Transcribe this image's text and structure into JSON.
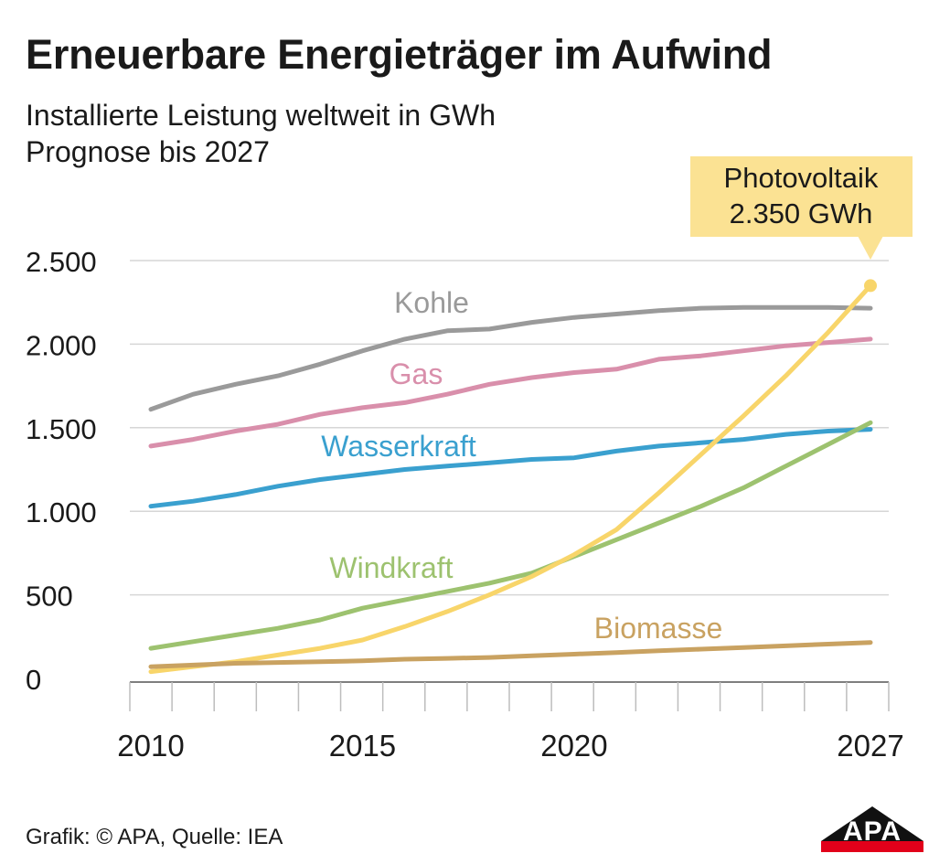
{
  "header": {
    "title": "Erneuerbare Energieträger im Aufwind",
    "subtitle_line1": "Installierte Leistung weltweit in GWh",
    "subtitle_line2": "Prognose bis 2027"
  },
  "footer": {
    "source": "Grafik: © APA, Quelle: IEA",
    "logo_text": "APA"
  },
  "chart_data": {
    "type": "line",
    "x": [
      2010,
      2011,
      2012,
      2013,
      2014,
      2015,
      2016,
      2017,
      2018,
      2019,
      2020,
      2021,
      2022,
      2023,
      2024,
      2025,
      2026,
      2027
    ],
    "xlim": [
      2010,
      2027
    ],
    "xticks": [
      2010,
      2015,
      2020,
      2027
    ],
    "xtick_labels": [
      "2010",
      "2015",
      "2020",
      "2027"
    ],
    "ylim": [
      0,
      2500
    ],
    "yticks": [
      0,
      500,
      1000,
      1500,
      2000,
      2500
    ],
    "ytick_labels": [
      "0",
      "500",
      "1.000",
      "1.500",
      "2.000",
      "2.500"
    ],
    "grid": "horizontal",
    "series": [
      {
        "name": "Kohle",
        "color": "#9a9a9a",
        "values": [
          1610,
          1700,
          1760,
          1810,
          1880,
          1960,
          2030,
          2080,
          2090,
          2130,
          2160,
          2180,
          2200,
          2215,
          2220,
          2220,
          2220,
          2215
        ]
      },
      {
        "name": "Gas",
        "color": "#d98fab",
        "values": [
          1390,
          1430,
          1480,
          1520,
          1580,
          1620,
          1650,
          1700,
          1760,
          1800,
          1830,
          1850,
          1910,
          1930,
          1960,
          1990,
          2010,
          2030
        ]
      },
      {
        "name": "Wasserkraft",
        "color": "#3aa0cf",
        "values": [
          1030,
          1060,
          1100,
          1150,
          1190,
          1220,
          1250,
          1270,
          1290,
          1310,
          1320,
          1360,
          1390,
          1410,
          1430,
          1460,
          1480,
          1490
        ]
      },
      {
        "name": "Windkraft",
        "color": "#9dc26f",
        "values": [
          180,
          220,
          260,
          300,
          350,
          420,
          470,
          520,
          570,
          630,
          730,
          830,
          930,
          1030,
          1140,
          1270,
          1400,
          1530
        ]
      },
      {
        "name": "Photovoltaik",
        "color": "#f8d56a",
        "values": [
          40,
          70,
          100,
          140,
          180,
          230,
          310,
          400,
          500,
          610,
          740,
          890,
          1110,
          1340,
          1570,
          1810,
          2070,
          2350
        ]
      },
      {
        "name": "Biomasse",
        "color": "#c9a261",
        "values": [
          70,
          80,
          90,
          95,
          100,
          105,
          115,
          120,
          125,
          135,
          145,
          155,
          165,
          175,
          185,
          195,
          205,
          215
        ]
      }
    ],
    "annotation": {
      "series": "Photovoltaik",
      "x": 2027,
      "line1": "Photovoltaik",
      "line2": "2.350 GWh",
      "box_color": "#fbe293"
    }
  }
}
